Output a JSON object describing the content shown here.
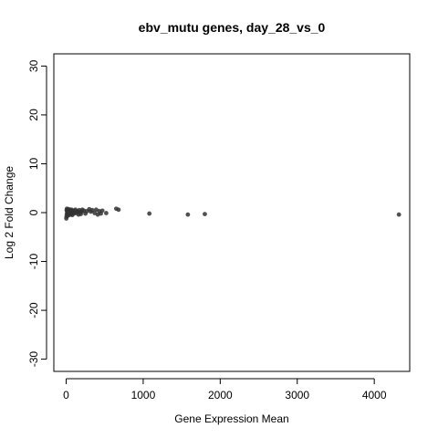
{
  "chart_data": {
    "type": "scatter",
    "title": "ebv_mutu genes, day_28_vs_0",
    "xlabel": "Gene Expression Mean",
    "ylabel": "Log 2 Fold Change",
    "xlim": [
      -160,
      4460
    ],
    "ylim": [
      -32.5,
      32.5
    ],
    "xticks": [
      0,
      1000,
      2000,
      3000,
      4000
    ],
    "yticks": [
      -30,
      -20,
      -10,
      0,
      10,
      20,
      30
    ],
    "grid": false,
    "point_color": "#333333",
    "series": [
      {
        "x": [
          2,
          4,
          6,
          8,
          10,
          12,
          15,
          18,
          20,
          22,
          25,
          28,
          30,
          35,
          40,
          45,
          50,
          55,
          60,
          65,
          70,
          75,
          80,
          90,
          95,
          100,
          110,
          120,
          130,
          140,
          150,
          160,
          170,
          180,
          190,
          200,
          210,
          230,
          250,
          270,
          300,
          320,
          340,
          370,
          390,
          410,
          430,
          450,
          470,
          520,
          650,
          680,
          1080,
          1580,
          1800,
          4320
        ],
        "y": [
          -1.2,
          -0.8,
          0.5,
          -0.3,
          0.8,
          0.2,
          -0.5,
          0.6,
          0.1,
          -0.2,
          0.4,
          -0.6,
          0.3,
          0.7,
          -0.1,
          0.2,
          -0.4,
          0.5,
          0.1,
          -0.3,
          0.6,
          0.2,
          -0.5,
          0.3,
          0.4,
          -0.2,
          0.1,
          0.6,
          -0.1,
          0.3,
          0.2,
          -0.4,
          0.5,
          0.1,
          -0.3,
          0.2,
          0.6,
          0.4,
          -0.2,
          0.3,
          0.7,
          0.2,
          0.5,
          -0.1,
          0.6,
          -0.4,
          0.3,
          -0.2,
          0.4,
          -0.1,
          0.8,
          0.6,
          -0.2,
          -0.4,
          -0.3,
          -0.4
        ]
      }
    ]
  }
}
